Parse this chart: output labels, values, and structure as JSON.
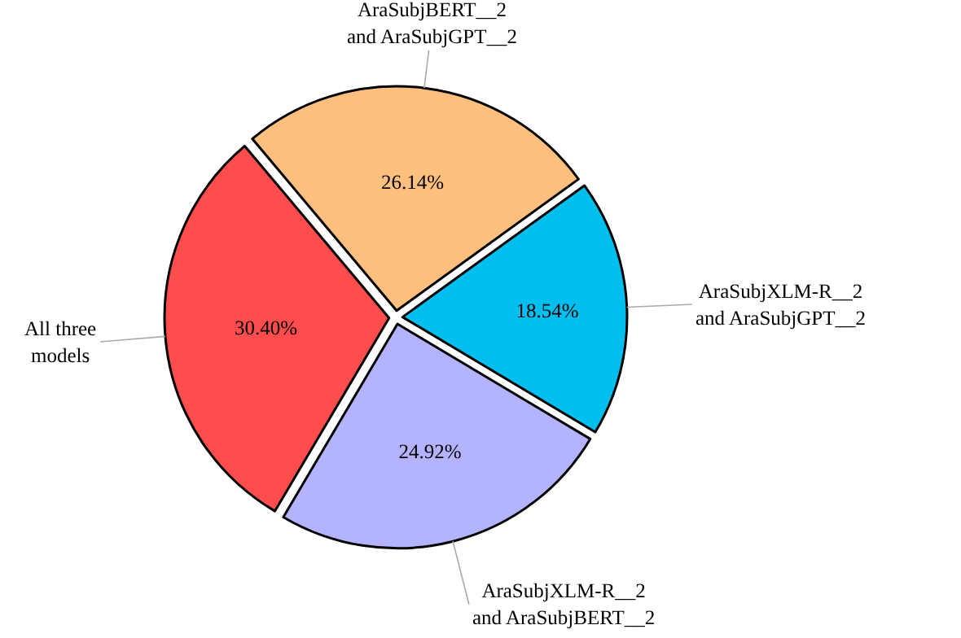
{
  "chart_data": {
    "type": "pie",
    "categories": [
      "AraSubjBERT__2 and AraSubjGPT__2",
      "AraSubjXLM-R__2 and AraSubjGPT__2",
      "AraSubjXLM-R__2 and AraSubjBERT__2",
      "All three models"
    ],
    "values": [
      26.14,
      18.54,
      24.92,
      30.4
    ],
    "colors": [
      "#ffbf7f",
      "#00bfef",
      "#b3b3ff",
      "#ff4c4c"
    ],
    "value_labels": [
      "26.14%",
      "18.54%",
      "24.92%",
      "30.40%"
    ],
    "legend": false
  }
}
